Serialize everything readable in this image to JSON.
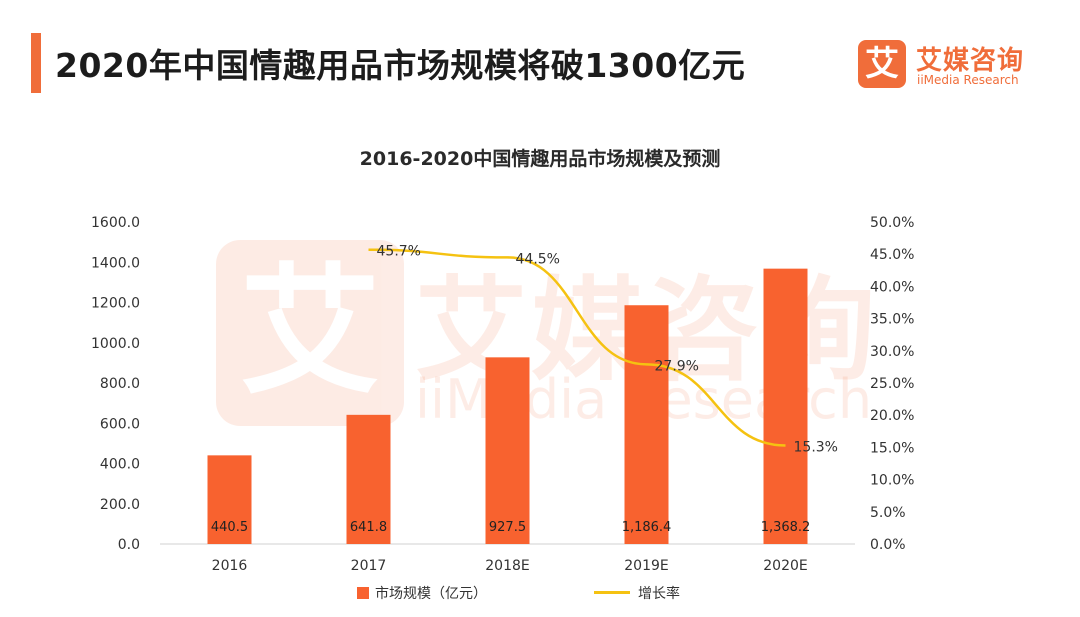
{
  "header": {
    "title": "2020年中国情趣用品市场规模将破1300亿元"
  },
  "brand": {
    "logo_char": "艾",
    "name_cn": "艾媒咨询",
    "name_en": "iiMedia Research"
  },
  "watermark": {
    "logo_char": "艾",
    "name_cn": "艾媒咨询",
    "name_en": "iiMedia Research"
  },
  "colors": {
    "accent": "#f06d3a",
    "bar": "#f8622f",
    "line": "#f5c211"
  },
  "chart_data": {
    "type": "bar",
    "title": "2016-2020中国情趣用品市场规模及预测",
    "categories": [
      "2016",
      "2017",
      "2018E",
      "2019E",
      "2020E"
    ],
    "series": [
      {
        "name": "市场规模（亿元）",
        "type": "bar",
        "axis": "left",
        "values": [
          440.5,
          641.8,
          927.5,
          1186.4,
          1368.2
        ],
        "labels": [
          "440.5",
          "641.8",
          "927.5",
          "1,186.4",
          "1,368.2"
        ]
      },
      {
        "name": "增长率",
        "type": "line",
        "axis": "right",
        "values": [
          null,
          45.7,
          44.5,
          27.9,
          15.3
        ],
        "labels": [
          "",
          "45.7%",
          "44.5%",
          "27.9%",
          "15.3%"
        ]
      }
    ],
    "y_left": {
      "min": 0,
      "max": 1600,
      "step": 200,
      "ticks": [
        "0.0",
        "200.0",
        "400.0",
        "600.0",
        "800.0",
        "1000.0",
        "1200.0",
        "1400.0",
        "1600.0"
      ]
    },
    "y_right": {
      "min": 0,
      "max": 50,
      "step": 5,
      "ticks": [
        "0.0%",
        "5.0%",
        "10.0%",
        "15.0%",
        "20.0%",
        "25.0%",
        "30.0%",
        "35.0%",
        "40.0%",
        "45.0%",
        "50.0%"
      ]
    },
    "grid": false,
    "legend": "bottom"
  }
}
